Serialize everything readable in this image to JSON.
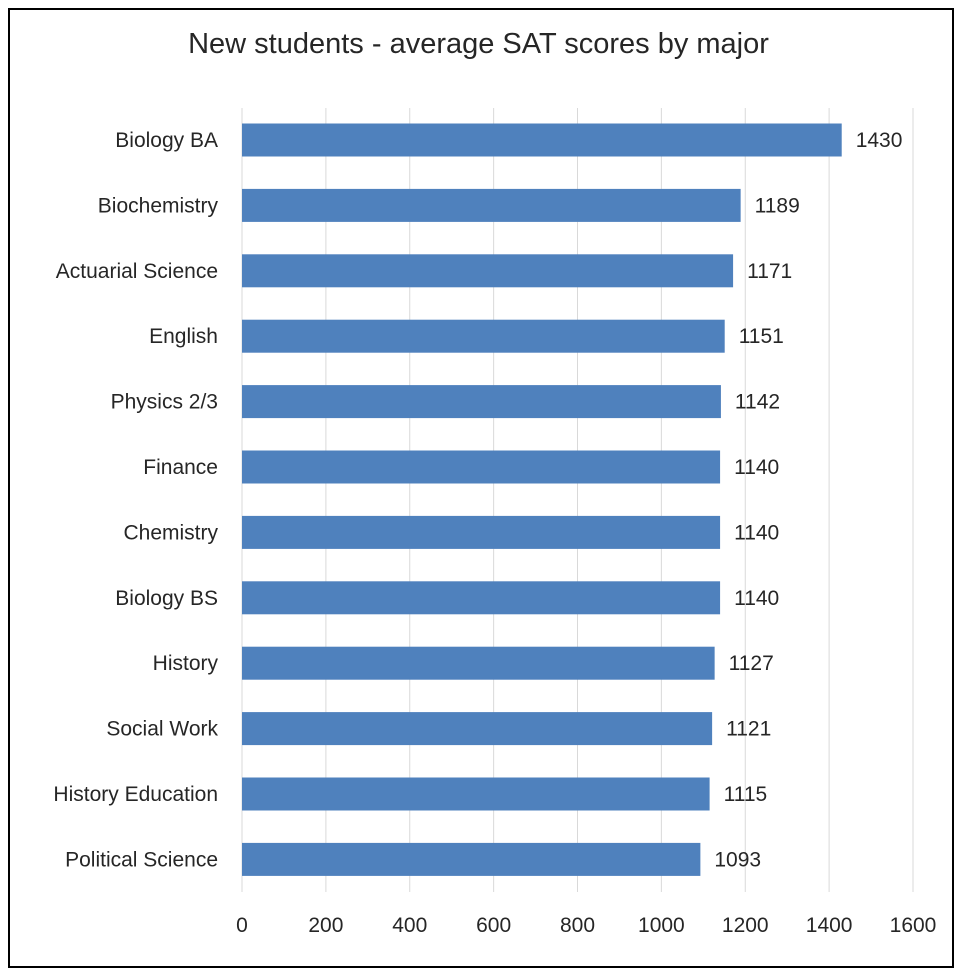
{
  "chart_data": {
    "type": "bar",
    "orientation": "horizontal",
    "title": "New students - average SAT scores by major",
    "xlabel": "",
    "ylabel": "",
    "categories": [
      "Biology BA",
      "Biochemistry",
      "Actuarial Science",
      "English",
      "Physics 2/3",
      "Finance",
      "Chemistry",
      "Biology BS",
      "History",
      "Social Work",
      "History Education",
      "Political Science"
    ],
    "values": [
      1430,
      1189,
      1171,
      1151,
      1142,
      1140,
      1140,
      1140,
      1127,
      1121,
      1115,
      1093
    ],
    "value_labels": [
      "1430",
      "1189",
      "1171",
      "1151",
      "1142",
      "1140",
      "1140",
      "1140",
      "1127",
      "1121",
      "1115",
      "1093"
    ],
    "xlim": [
      0,
      1600
    ],
    "x_ticks": [
      0,
      200,
      400,
      600,
      800,
      1000,
      1200,
      1400,
      1600
    ],
    "x_tick_labels": [
      "0",
      "200",
      "400",
      "600",
      "800",
      "1000",
      "1200",
      "1400",
      "1600"
    ],
    "grid": "vertical",
    "legend": "none",
    "bar_color": "#4F81BD",
    "grid_color": "#D9D9D9"
  }
}
